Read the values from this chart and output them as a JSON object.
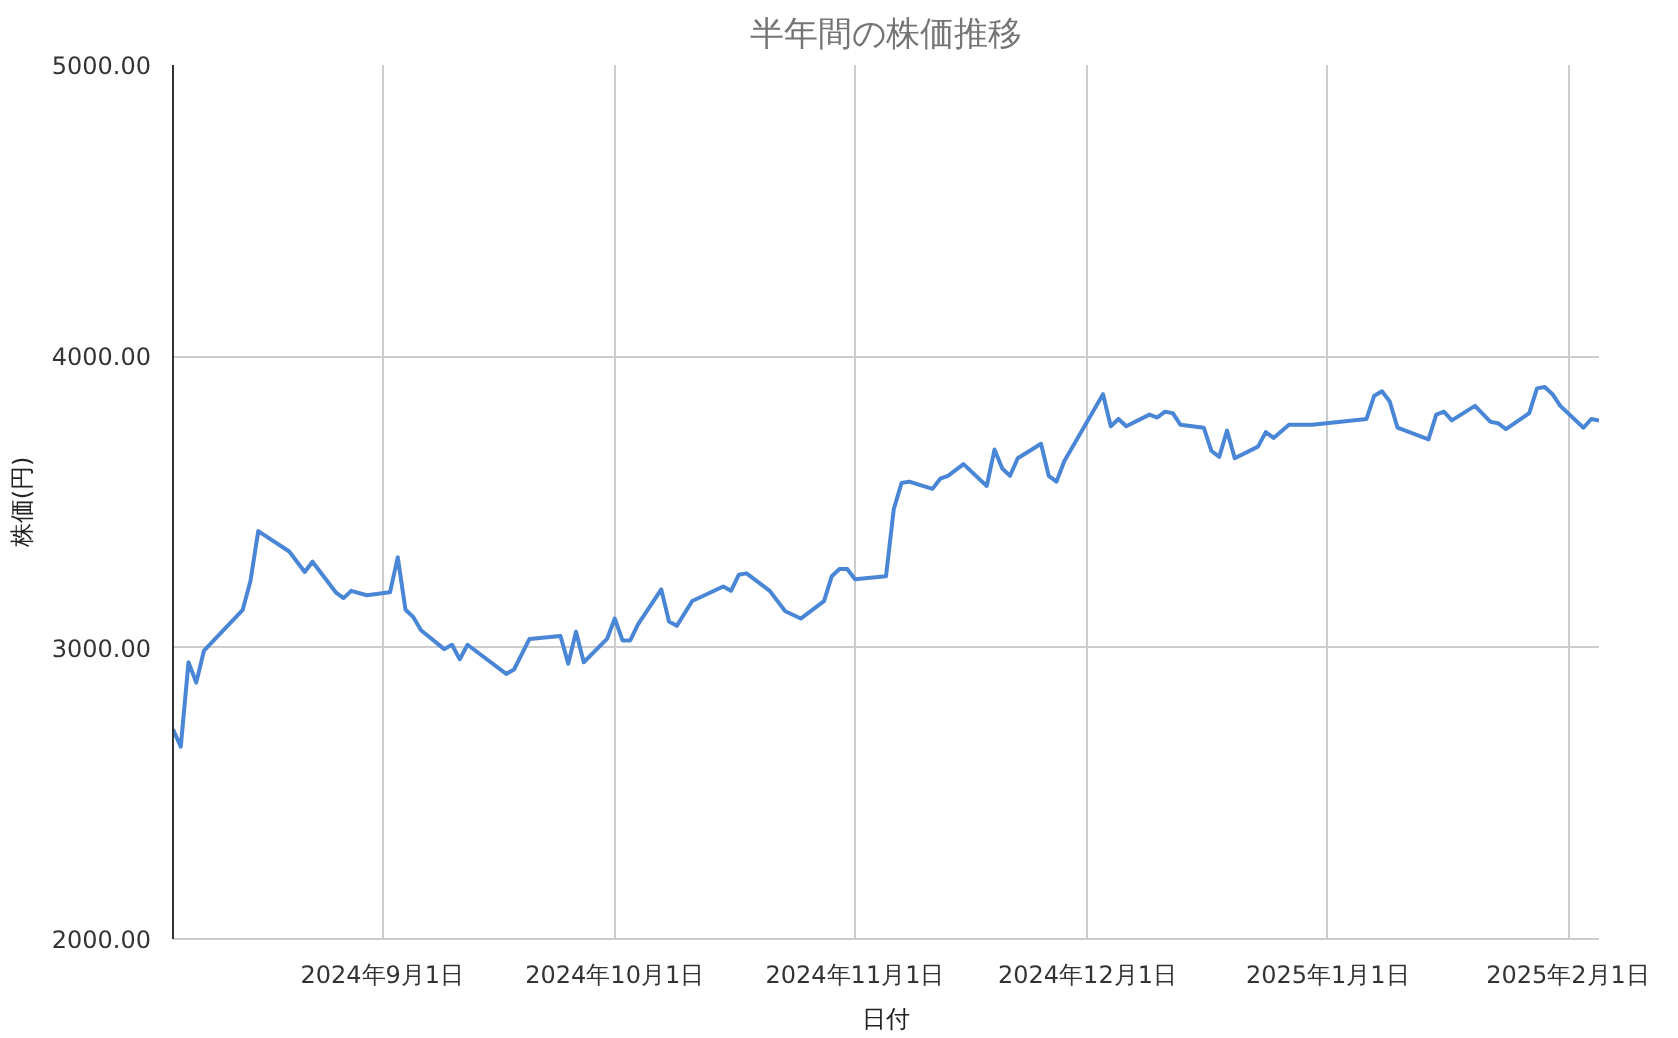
{
  "chart_data": {
    "type": "line",
    "title": "半年間の株価推移",
    "xlabel": "日付",
    "ylabel": "株価(円)",
    "x": [
      "2024-08-05",
      "2024-08-06",
      "2024-08-07",
      "2024-08-08",
      "2024-08-09",
      "2024-08-14",
      "2024-08-15",
      "2024-08-16",
      "2024-08-20",
      "2024-08-22",
      "2024-08-23",
      "2024-08-26",
      "2024-08-27",
      "2024-08-28",
      "2024-08-30",
      "2024-09-02",
      "2024-09-03",
      "2024-09-04",
      "2024-09-05",
      "2024-09-06",
      "2024-09-09",
      "2024-09-10",
      "2024-09-11",
      "2024-09-12",
      "2024-09-17",
      "2024-09-18",
      "2024-09-20",
      "2024-09-24",
      "2024-09-25",
      "2024-09-26",
      "2024-09-27",
      "2024-09-30",
      "2024-10-01",
      "2024-10-02",
      "2024-10-03",
      "2024-10-04",
      "2024-10-07",
      "2024-10-08",
      "2024-10-09",
      "2024-10-11",
      "2024-10-15",
      "2024-10-16",
      "2024-10-17",
      "2024-10-18",
      "2024-10-21",
      "2024-10-23",
      "2024-10-25",
      "2024-10-28",
      "2024-10-29",
      "2024-10-30",
      "2024-10-31",
      "2024-11-01",
      "2024-11-05",
      "2024-11-06",
      "2024-11-07",
      "2024-11-08",
      "2024-11-11",
      "2024-11-12",
      "2024-11-13",
      "2024-11-15",
      "2024-11-18",
      "2024-11-19",
      "2024-11-20",
      "2024-11-21",
      "2024-11-22",
      "2024-11-25",
      "2024-11-26",
      "2024-11-27",
      "2024-11-28",
      "2024-12-03",
      "2024-12-04",
      "2024-12-05",
      "2024-12-06",
      "2024-12-09",
      "2024-12-10",
      "2024-12-11",
      "2024-12-12",
      "2024-12-13",
      "2024-12-16",
      "2024-12-17",
      "2024-12-18",
      "2024-12-19",
      "2024-12-20",
      "2024-12-23",
      "2024-12-24",
      "2024-12-25",
      "2024-12-27",
      "2024-12-30",
      "2025-01-06",
      "2025-01-07",
      "2025-01-08",
      "2025-01-09",
      "2025-01-10",
      "2025-01-14",
      "2025-01-15",
      "2025-01-16",
      "2025-01-17",
      "2025-01-20",
      "2025-01-22",
      "2025-01-23",
      "2025-01-24",
      "2025-01-27",
      "2025-01-28",
      "2025-01-29",
      "2025-01-30",
      "2025-01-31",
      "2025-02-03",
      "2025-02-04",
      "2025-02-05"
    ],
    "series": [
      {
        "color": "#4a86d6",
        "values": [
          2720,
          2660,
          2950,
          2880,
          2990,
          3130,
          3230,
          3400,
          3330,
          3260,
          3295,
          3190,
          3170,
          3195,
          3180,
          3190,
          3310,
          3130,
          3105,
          3060,
          2995,
          3010,
          2960,
          3010,
          2910,
          2925,
          3030,
          3040,
          2945,
          3055,
          2950,
          3030,
          3100,
          3025,
          3025,
          3080,
          3200,
          3090,
          3075,
          3160,
          3210,
          3195,
          3250,
          3255,
          3195,
          3125,
          3100,
          3160,
          3245,
          3270,
          3270,
          3235,
          3245,
          3475,
          3565,
          3570,
          3545,
          3580,
          3590,
          3630,
          3555,
          3680,
          3615,
          3590,
          3650,
          3700,
          3590,
          3570,
          3640,
          3870,
          3760,
          3785,
          3760,
          3800,
          3790,
          3810,
          3805,
          3765,
          3755,
          3675,
          3655,
          3745,
          3650,
          3690,
          3740,
          3720,
          3765,
          3765,
          3785,
          3865,
          3880,
          3845,
          3755,
          3715,
          3800,
          3810,
          3780,
          3830,
          3775,
          3770,
          3750,
          3805,
          3890,
          3895,
          3870,
          3830,
          3755,
          3785,
          3780
        ]
      }
    ],
    "xlim": [
      "2024-08-05",
      "2025-02-05"
    ],
    "xticks": [
      {
        "value": "2024-09-01",
        "label": "2024年9月1日"
      },
      {
        "value": "2024-10-01",
        "label": "2024年10月1日"
      },
      {
        "value": "2024-11-01",
        "label": "2024年11月1日"
      },
      {
        "value": "2024-12-01",
        "label": "2024年12月1日"
      },
      {
        "value": "2025-01-01",
        "label": "2025年1月1日"
      },
      {
        "value": "2025-02-01",
        "label": "2025年2月1日"
      }
    ],
    "ylim": [
      2000,
      5000
    ],
    "yticks": [
      {
        "value": 2000,
        "label": "2000.00"
      },
      {
        "value": 3000,
        "label": "3000.00"
      },
      {
        "value": 4000,
        "label": "4000.00"
      },
      {
        "value": 5000,
        "label": "5000.00"
      }
    ],
    "grid": true
  }
}
